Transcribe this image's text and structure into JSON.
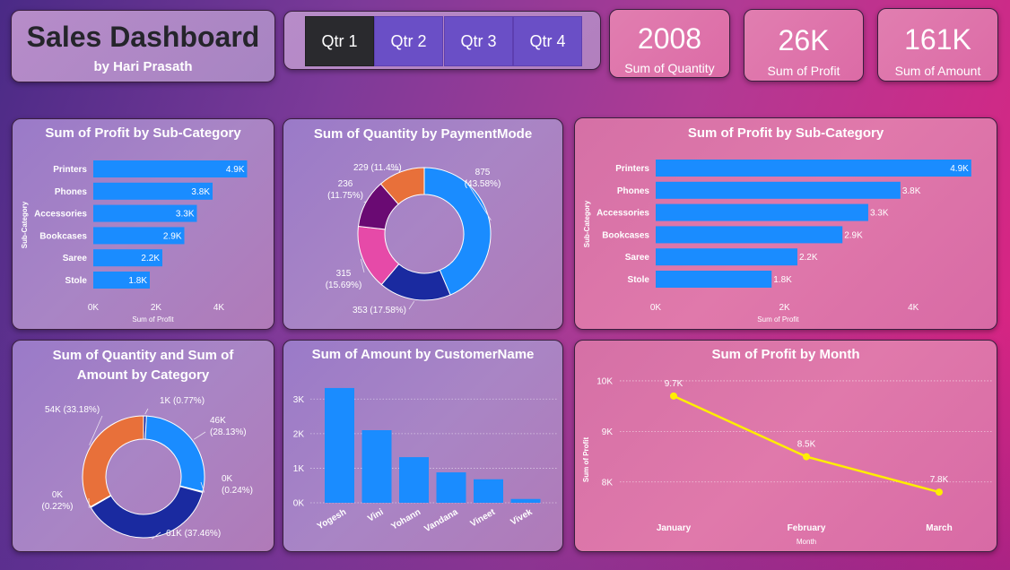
{
  "header": {
    "title": "Sales Dashboard",
    "subtitle": "by Hari Prasath"
  },
  "slicer": {
    "items": [
      {
        "label": "Qtr 1",
        "selected": true
      },
      {
        "label": "Qtr 2",
        "selected": false
      },
      {
        "label": "Qtr 3",
        "selected": false
      },
      {
        "label": "Qtr 4",
        "selected": false
      }
    ]
  },
  "kpis": [
    {
      "value": "2008",
      "label": "Sum of Quantity"
    },
    {
      "value": "26K",
      "label": "Sum of Profit"
    },
    {
      "value": "161K",
      "label": "Sum of Amount"
    }
  ],
  "colors": {
    "bar": "#1a8cff",
    "navy": "#1a2aa0",
    "orange": "#e8703a",
    "magenta": "#e64aa8",
    "purple": "#6a0a73",
    "line": "#ffee00",
    "selected": "#2a2a2e",
    "slicer": "#6a4fc6"
  },
  "chart_data": [
    {
      "id": "profit_subcat_left",
      "type": "bar",
      "orientation": "horizontal",
      "title": "Sum of Profit by Sub-Category",
      "xlabel": "Sum of Profit",
      "ylabel": "Sub-Category",
      "categories": [
        "Printers",
        "Phones",
        "Accessories",
        "Bookcases",
        "Saree",
        "Stole"
      ],
      "values": [
        4900,
        3800,
        3300,
        2900,
        2200,
        1800
      ],
      "data_labels": [
        "4.9K",
        "3.8K",
        "3.3K",
        "2.9K",
        "2.2K",
        "1.8K"
      ],
      "xlim": [
        0,
        5000
      ],
      "xticks": [
        "0K",
        "2K",
        "4K"
      ]
    },
    {
      "id": "qty_payment",
      "type": "pie",
      "donut": true,
      "title": "Sum of Quantity by PaymentMode",
      "slices": [
        {
          "value": 875,
          "label": "875\n(43.58%)",
          "color": "#1a8cff"
        },
        {
          "value": 353,
          "label": "353 (17.58%)",
          "color": "#1a2aa0"
        },
        {
          "value": 315,
          "label": "315\n(15.69%)",
          "color": "#e64aa8"
        },
        {
          "value": 236,
          "label": "236\n(11.75%)",
          "color": "#6a0a73"
        },
        {
          "value": 229,
          "label": "229 (11.4%)",
          "color": "#e8703a"
        }
      ]
    },
    {
      "id": "profit_subcat_right",
      "type": "bar",
      "orientation": "horizontal",
      "title": "Sum of Profit by Sub-Category",
      "xlabel": "Sum of Profit",
      "ylabel": "Sub-Category",
      "categories": [
        "Printers",
        "Phones",
        "Accessories",
        "Bookcases",
        "Saree",
        "Stole"
      ],
      "values": [
        4900,
        3800,
        3300,
        2900,
        2200,
        1800
      ],
      "data_labels": [
        "4.9K",
        "3.8K",
        "3.3K",
        "2.9K",
        "2.2K",
        "1.8K"
      ],
      "xlim": [
        0,
        5000
      ],
      "xticks": [
        "0K",
        "2K",
        "4K"
      ]
    },
    {
      "id": "qty_amount_category",
      "type": "pie",
      "donut": true,
      "title": "Sum of Quantity and Sum of Amount by Category",
      "slices": [
        {
          "value": 0.77,
          "label": "1K (0.77%)",
          "color": "#1a2aa0"
        },
        {
          "value": 28.13,
          "label": "46K\n(28.13%)",
          "color": "#1a8cff"
        },
        {
          "value": 0.24,
          "label": "0K\n(0.24%)",
          "color": "#e8703a"
        },
        {
          "value": 37.46,
          "label": "61K (37.46%)",
          "color": "#1a2aa0"
        },
        {
          "value": 0.22,
          "label": "0K\n(0.22%)",
          "color": "#1a8cff"
        },
        {
          "value": 33.18,
          "label": "54K (33.18%)",
          "color": "#e8703a"
        }
      ]
    },
    {
      "id": "amount_customer",
      "type": "bar",
      "orientation": "vertical",
      "title": "Sum of Amount by CustomerName",
      "categories": [
        "Yogesh",
        "Vini",
        "Yohann",
        "Vandana",
        "Vineet",
        "Vivek"
      ],
      "values": [
        3320,
        2100,
        1320,
        880,
        680,
        110
      ],
      "ylim": [
        0,
        3500
      ],
      "yticks": [
        "0K",
        "1K",
        "2K",
        "3K"
      ]
    },
    {
      "id": "profit_month",
      "type": "line",
      "title": "Sum of Profit by Month",
      "xlabel": "Month",
      "ylabel": "Sum of Profit",
      "categories": [
        "January",
        "February",
        "March"
      ],
      "values": [
        9700,
        8500,
        7800
      ],
      "data_labels": [
        "9.7K",
        "8.5K",
        "7.8K"
      ],
      "ylim": [
        7500,
        10300
      ],
      "yticks": [
        "8K",
        "9K",
        "10K"
      ]
    }
  ]
}
